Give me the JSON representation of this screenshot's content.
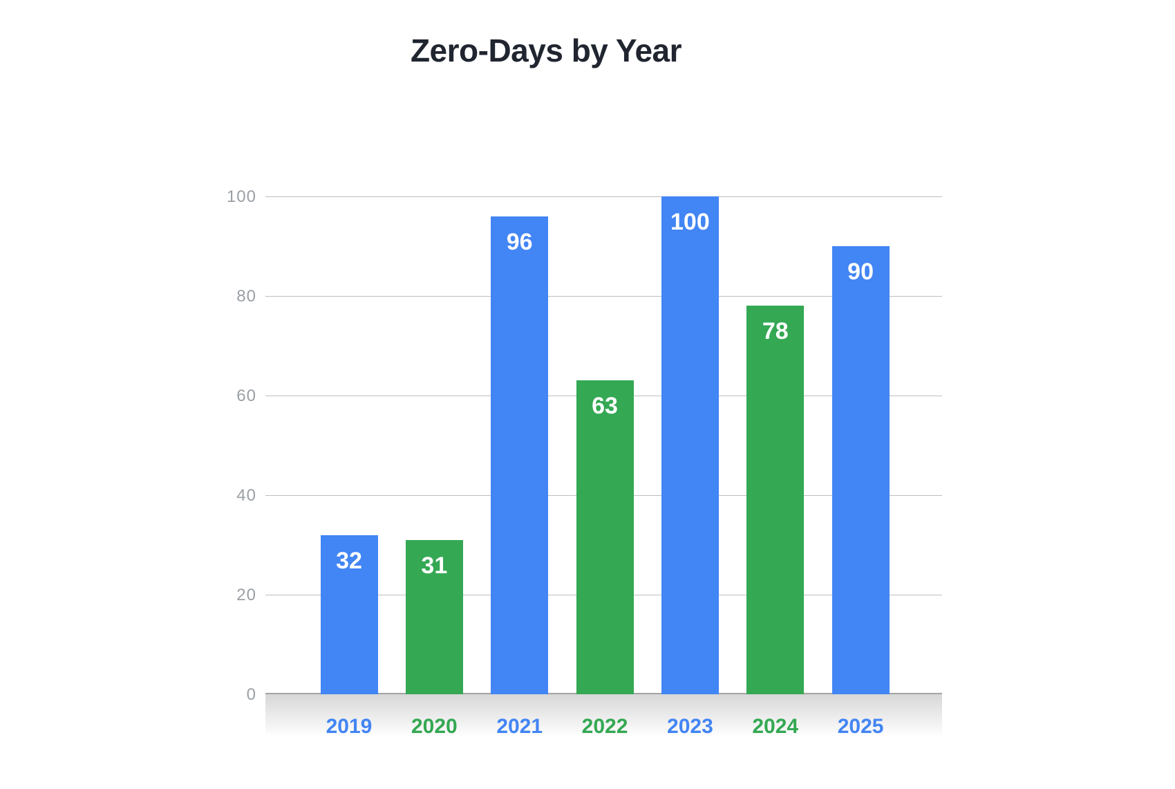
{
  "chart_data": {
    "type": "bar",
    "title": "Zero-Days by Year",
    "categories": [
      "2019",
      "2020",
      "2021",
      "2022",
      "2023",
      "2024",
      "2025"
    ],
    "values": [
      32,
      31,
      96,
      63,
      100,
      78,
      90
    ],
    "bar_colors": [
      "#4285F4",
      "#34A853",
      "#4285F4",
      "#34A853",
      "#4285F4",
      "#34A853",
      "#4285F4"
    ],
    "category_label_colors": [
      "#4285F4",
      "#34A853",
      "#4285F4",
      "#34A853",
      "#4285F4",
      "#34A853",
      "#4285F4"
    ],
    "value_label_color": "#FFFFFF",
    "yticks": [
      0,
      20,
      40,
      60,
      80,
      100
    ],
    "ylim": [
      0,
      100
    ],
    "xlabel": "",
    "ylabel": "",
    "grid": true,
    "legend_position": "none",
    "gridline_color": "#BDBDBD",
    "axis_line_color": "#A3A3A3",
    "tick_label_color": "#9AA0A6",
    "title_color": "#202530"
  }
}
